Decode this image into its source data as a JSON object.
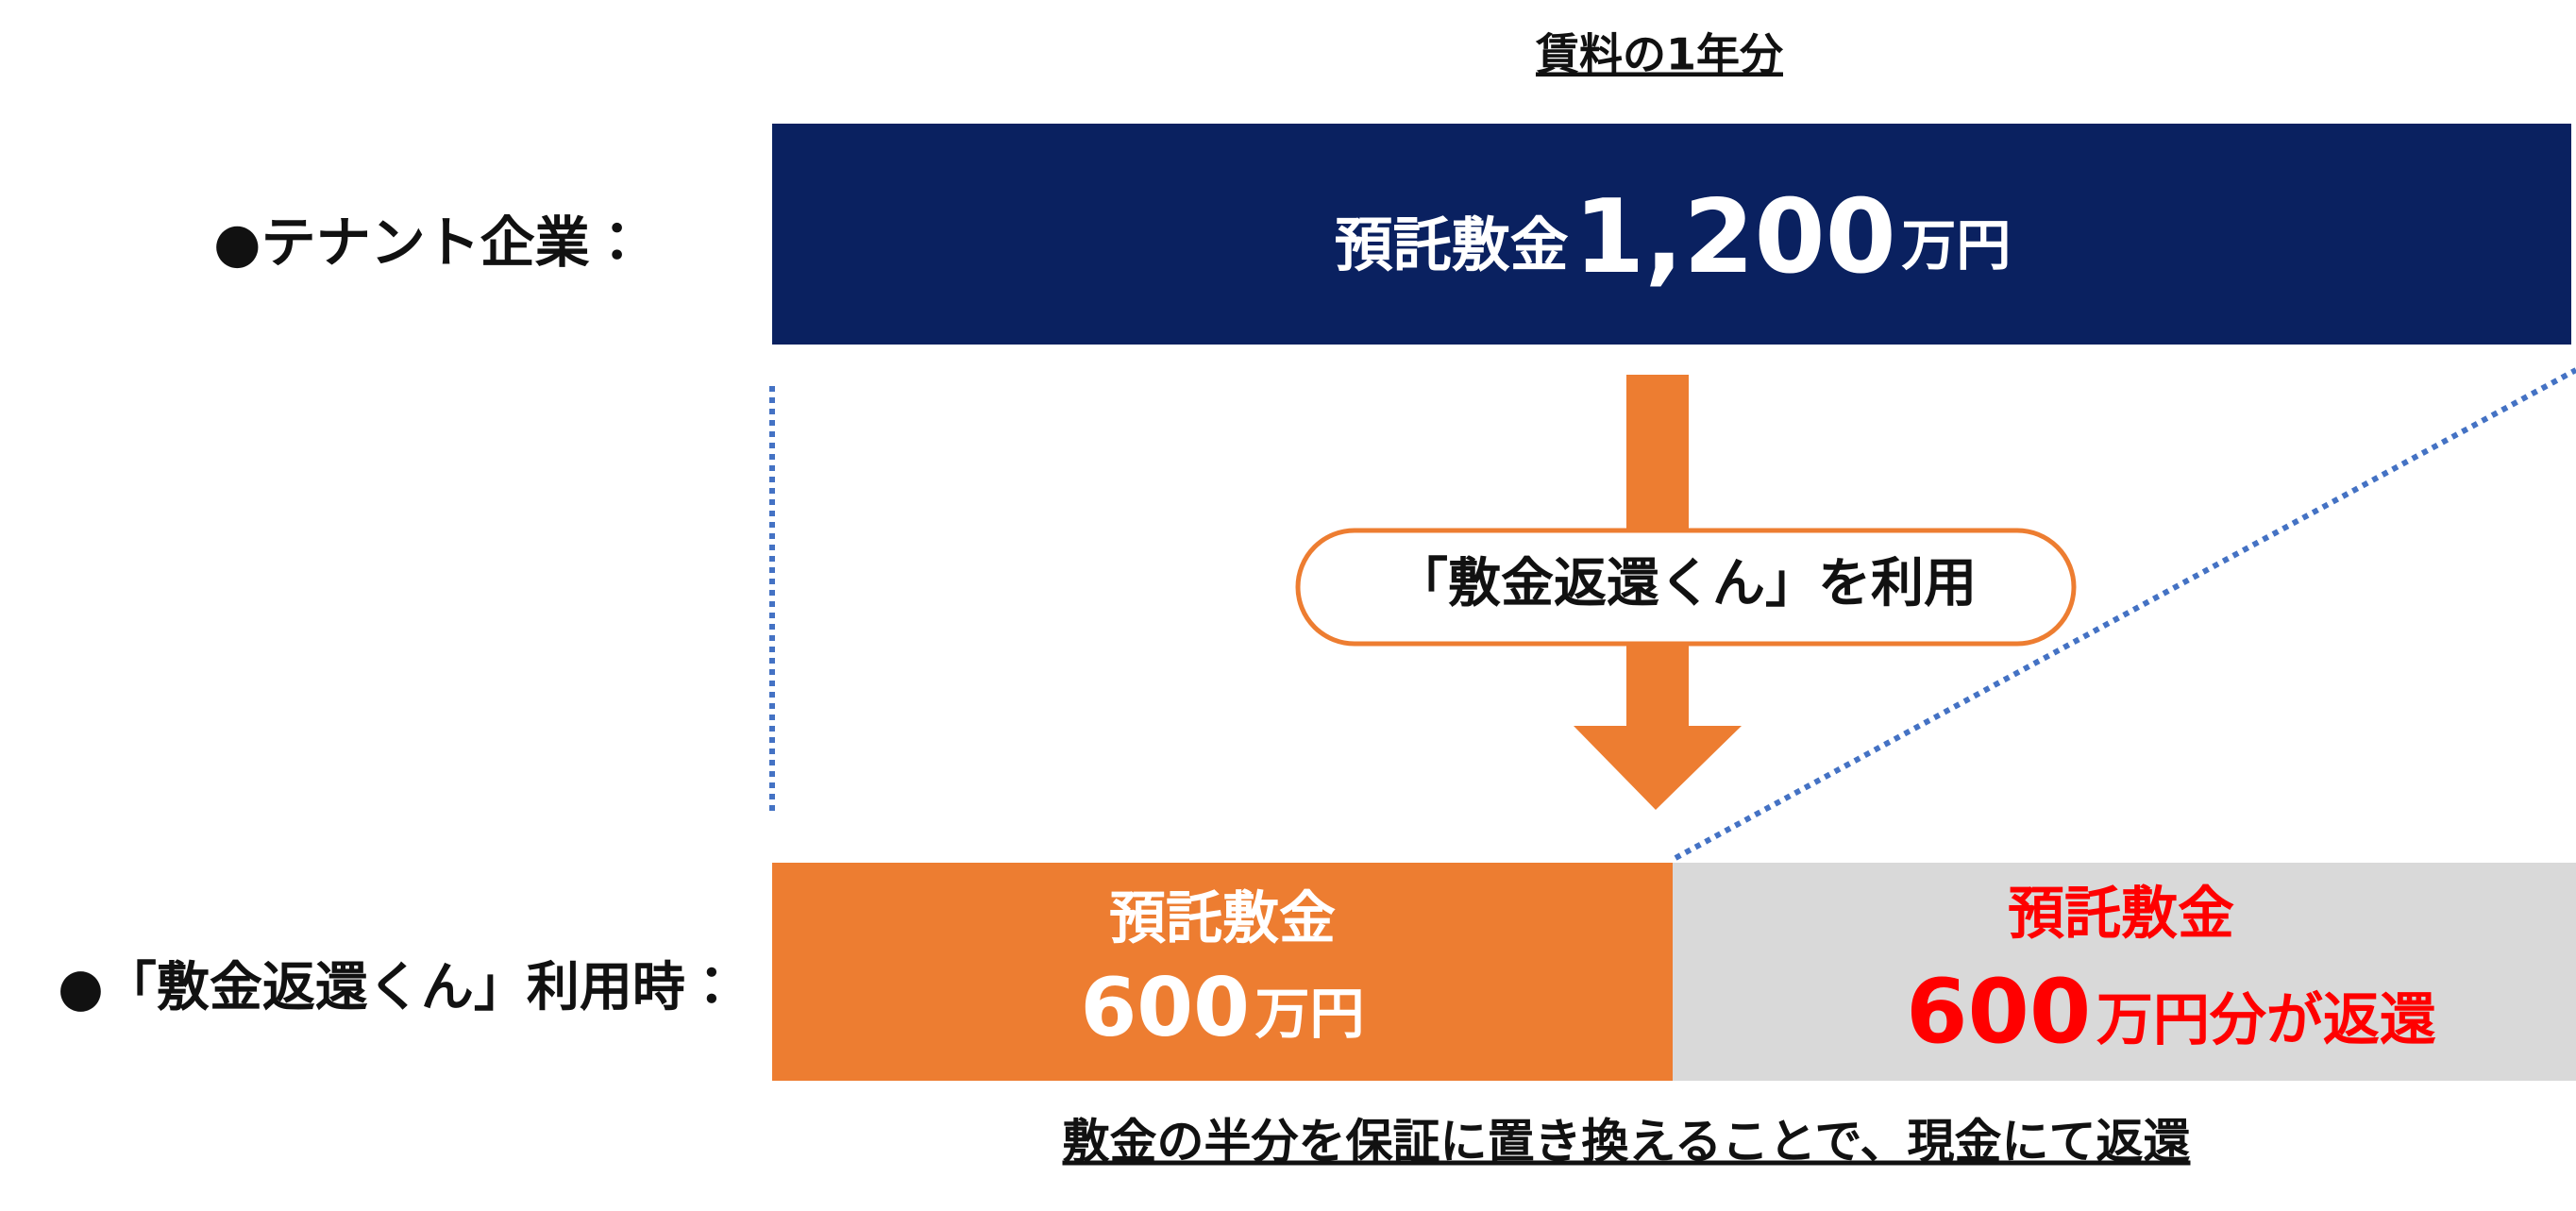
{
  "header": {
    "title": "賃料の1年分"
  },
  "tenant": {
    "label": "●テナント企業：",
    "deposit_label": "預託敷金",
    "amount": "1,200",
    "unit": "万円"
  },
  "service": {
    "label": "●「敷金返還くん」利用時：",
    "step": "「敷金返還くん」を利用",
    "deposit": {
      "label": "預託敷金",
      "amount": "600",
      "unit": "万円"
    },
    "refund": {
      "label": "預託敷金",
      "amount": "600",
      "unit": "万円分が返還"
    }
  },
  "footer": {
    "note": "敷金の半分を保証に置き換えることで、現金にて返還"
  }
}
